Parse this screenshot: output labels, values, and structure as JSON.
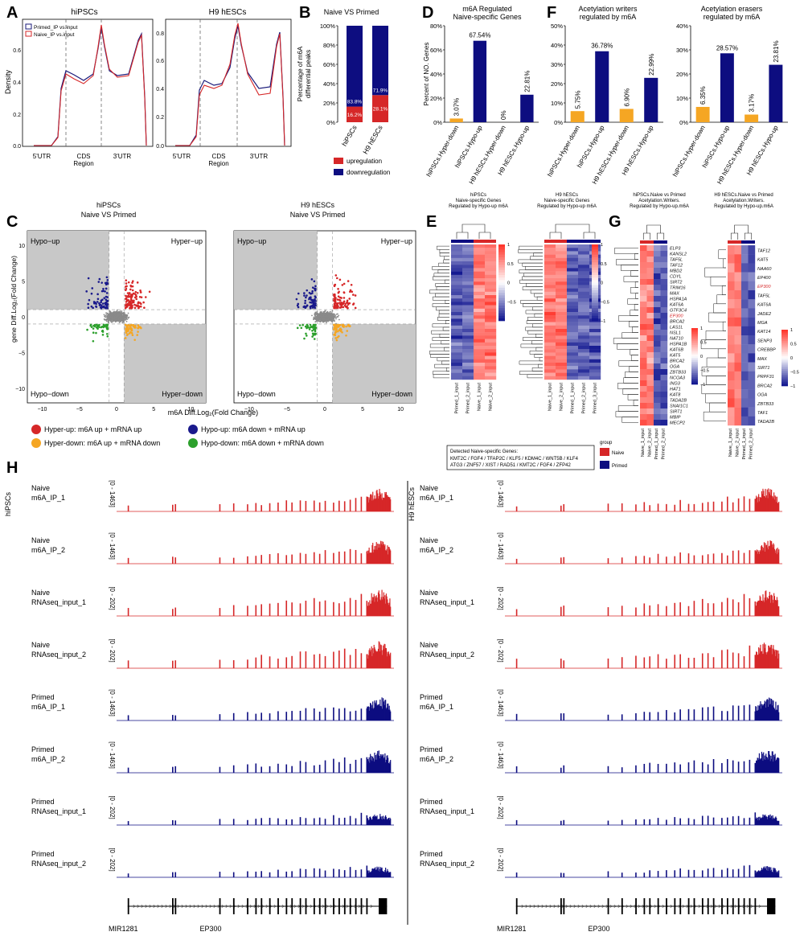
{
  "panel_letters": [
    "A",
    "B",
    "C",
    "D",
    "E",
    "F",
    "G",
    "H"
  ],
  "panel_a": {
    "left_title": "hiPSCs",
    "right_title": "H9 hESCs",
    "ylabel": "Density",
    "legend": [
      "Primed_IP vs.input",
      "Naive_IP vs.input"
    ],
    "x_ticks": [
      "5'UTR",
      "CDS\nRegion",
      "3'UTR"
    ],
    "left_yticks": [
      "0.0",
      "0.2",
      "0.4",
      "0.6"
    ],
    "right_yticks": [
      "0.0",
      "0.2",
      "0.4",
      "0.6",
      "0.8"
    ],
    "colors": {
      "primed": "#1a1a7a",
      "naive": "#d62728"
    }
  },
  "panel_b": {
    "title": "Naive VS Primed",
    "ylabel": "Percentage of m6A differential peaks",
    "legend": [
      "upregulation",
      "downregulation"
    ],
    "colors": {
      "up": "#d62728",
      "down": "#0d0d80"
    }
  },
  "panel_c": {
    "left_title": [
      "hiPSCs",
      "Naive VS Primed"
    ],
    "right_title": [
      "H9 hESCs",
      "Naive VS Primed"
    ],
    "ylabel": "gene Diff.Log₂(Fold Change)",
    "xlabel": "m6A Diff.Log₂(Fold Change)",
    "quadrants": [
      "Hypo−up",
      "Hyper−up",
      "Hypo−down",
      "Hyper−down"
    ],
    "x_ticks": [
      "−10",
      "−5",
      "0",
      "5",
      "10"
    ],
    "y_ticks": [
      "10",
      "5",
      "0",
      "−5",
      "−10"
    ],
    "legend": [
      {
        "label": "Hyper-up: m6A up + mRNA up",
        "color": "#d62728"
      },
      {
        "label": "Hypo-up: m6A down + mRNA up",
        "color": "#1a1a8c"
      },
      {
        "label": "Hyper-down: m6A up + mRNA down",
        "color": "#f5a623"
      },
      {
        "label": "Hypo-down: m6A down + mRNA down",
        "color": "#2ca02c"
      }
    ]
  },
  "panel_d": {
    "title": [
      "m6A Regulated",
      "Naive-specific Genes"
    ],
    "ylabel": "Percent of NO. Genes",
    "y_ticks": [
      "0%",
      "20%",
      "40%",
      "60%",
      "80%"
    ]
  },
  "panel_f": {
    "left_title": [
      "Acetylation writers",
      "regulated by m6A"
    ],
    "right_title": [
      "Acetylation erasers",
      "regulated by m6A"
    ],
    "left_yticks": [
      "0%",
      "10%",
      "20%",
      "30%",
      "40%",
      "50%"
    ],
    "right_yticks": [
      "0%",
      "10%",
      "20%",
      "30%",
      "40%"
    ]
  },
  "panel_e": {
    "left_title": [
      "hiPSCs",
      "Naive-specific Genes",
      "Regulated by Hypo-up m6A"
    ],
    "right_title": [
      "H9 hESCs",
      "Naive-specific Genes",
      "Regulated by Hypo-up m6A"
    ],
    "left_cols": [
      "Primed_1_input",
      "Primed_2_input",
      "Naive_1_input",
      "Naive_2_input"
    ],
    "right_cols": [
      "Naive_1_input",
      "Naive_2_input",
      "Primed_1_input",
      "Primed_2_input",
      "Primed_3_input"
    ],
    "scale_left": [
      "1",
      "0.5",
      "0",
      "−0.5"
    ],
    "scale_right": [
      "1",
      "0.5",
      "0",
      "−0.5",
      "−1"
    ],
    "detected_title": "Detected Naive-specific Genes:",
    "detected_line1": "KMT2C / FGF4 / TFAP2C / KLF5 / KDM4C / WNT5B / KLF4",
    "detected_line2": "ATG3 / ZNF57 / XIST / RAD51 / KMT2C / FGF4 / ZFP42",
    "group_title": "group",
    "group_naive": "Naive",
    "group_primed": "Primed"
  },
  "panel_g": {
    "left_title": [
      "hiPSCs.Naive vs Primed",
      "Acetylation.Writers.",
      "Regulated by Hypo-up.m6A"
    ],
    "right_title": [
      "H9 hESCs.Naive vs Primed",
      "Acetylation.Writers.",
      "Regulated by Hypo-up.m6A"
    ],
    "left_genes": [
      "ELP3",
      "KANSL2",
      "TAF5L",
      "TAF12",
      "MBD2",
      "CDYL",
      "SIRT2",
      "TRIM16",
      "MAX",
      "HSPA1A",
      "KAT6A",
      "GTF3C4",
      "EP300",
      "BRCA2",
      "LAS1L",
      "NSL1",
      "NAT10",
      "HSPA1B",
      "KAT6B",
      "KAT5",
      "BRCA2",
      "OGA",
      "ZBTB33",
      "NCOA3",
      "ING3",
      "HAT1",
      "KAT8",
      "TADA2B",
      "SNAI1C1",
      "SIRT1",
      "MBIP",
      "MECP2"
    ],
    "right_genes": [
      "TAF12",
      "KAT5",
      "NAA60",
      "EP400",
      "EP300",
      "TAF5L",
      "KAT6A",
      "JADE2",
      "MGA",
      "KAT14",
      "SENP3",
      "CREBBP",
      "MAX",
      "SIRT1",
      "PRPF31",
      "BRCA2",
      "OGA",
      "ZBTB33",
      "TAF1",
      "TADA2B"
    ],
    "left_cols": [
      "Naive_1_input",
      "Naive_2_input",
      "Primed_1_input",
      "Primed_2_input"
    ],
    "right_cols": [
      "Naive_1_input",
      "Naive_2_input",
      "Primed_1_input",
      "Primed_2_input"
    ],
    "scale": [
      "1",
      "0.5",
      "0",
      "−0.5",
      "−1"
    ],
    "highlight_gene": "EP300"
  },
  "panel_h": {
    "left_side_label": "hiPSCs",
    "right_side_label": "H9 hESCs",
    "tracks": [
      {
        "label1": "Naive",
        "label2": "m6A_IP_1",
        "range": "[0 - 1463]",
        "color": "#d62728"
      },
      {
        "label1": "Naive",
        "label2": "m6A_IP_2",
        "range": "[0 - 1463]",
        "color": "#d62728"
      },
      {
        "label1": "Naive",
        "label2": "RNAseq_input_1",
        "range": "[0 - 202]",
        "color": "#d62728"
      },
      {
        "label1": "Naive",
        "label2": "RNAseq_input_2",
        "range": "[0 - 202]",
        "color": "#d62728"
      },
      {
        "label1": "Primed",
        "label2": "m6A_IP_1",
        "range": "[0 - 1463]",
        "color": "#0d0d80"
      },
      {
        "label1": "Primed",
        "label2": "m6A_IP_2",
        "range": "[0 - 1463]",
        "color": "#0d0d80"
      },
      {
        "label1": "Primed",
        "label2": "RNAseq_input_1",
        "range": "[0 - 202]",
        "color": "#0d0d80"
      },
      {
        "label1": "Primed",
        "label2": "RNAseq_input_2",
        "range": "[0 - 202]",
        "color": "#0d0d80"
      }
    ],
    "gene_labels": [
      "MIR1281",
      "EP300"
    ]
  },
  "chart_data": [
    {
      "panel": "B",
      "type": "bar",
      "categories": [
        "hiPSCs",
        "H9 hESCs"
      ],
      "series": [
        {
          "name": "upregulation",
          "values": [
            16.2,
            28.1
          ]
        },
        {
          "name": "downregulation",
          "values": [
            83.8,
            71.9
          ]
        }
      ],
      "value_labels": {
        "upregulation": [
          "16.2%",
          "28.1%"
        ],
        "downregulation": [
          "83.8%",
          "71.9%"
        ]
      },
      "y_ticks": [
        "0%",
        "20%",
        "40%",
        "60%",
        "80%",
        "100%"
      ],
      "ylim": [
        0,
        100
      ],
      "stacked": true
    },
    {
      "panel": "D",
      "type": "bar",
      "categories": [
        "hiPSCs.Hyper-down",
        "hiPSCs.Hypo-up",
        "H9 hESCs.Hyper-down",
        "H9 hESCs.Hypo-up"
      ],
      "values": [
        3.07,
        67.54,
        0,
        22.81
      ],
      "value_labels": [
        "3.07%",
        "67.54%",
        "0%",
        "22.81%"
      ],
      "colors": [
        "#f5a623",
        "#0d0d80",
        "#f5a623",
        "#0d0d80"
      ],
      "ylim": [
        0,
        80
      ]
    },
    {
      "panel": "F-writers",
      "type": "bar",
      "categories": [
        "hiPSCs.Hyper-down",
        "hiPSCs.Hypo-up",
        "H9 hESCs.Hyper-down",
        "H9 hESCs.Hypo-up"
      ],
      "values": [
        5.75,
        36.78,
        6.9,
        22.99
      ],
      "value_labels": [
        "5.75%",
        "36.78%",
        "6.90%",
        "22.99%"
      ],
      "colors": [
        "#f5a623",
        "#0d0d80",
        "#f5a623",
        "#0d0d80"
      ],
      "ylim": [
        0,
        50
      ]
    },
    {
      "panel": "F-erasers",
      "type": "bar",
      "categories": [
        "hiPSCs.Hyper-down",
        "hiPSCs.Hypo-up",
        "H9 hESCs.Hyper-down",
        "H9 hESCs.Hypo-up"
      ],
      "values": [
        6.35,
        28.57,
        3.17,
        23.81
      ],
      "value_labels": [
        "6.35%",
        "28.57%",
        "3.17%",
        "23.81%"
      ],
      "colors": [
        "#f5a623",
        "#0d0d80",
        "#f5a623",
        "#0d0d80"
      ],
      "ylim": [
        0,
        40
      ]
    }
  ]
}
